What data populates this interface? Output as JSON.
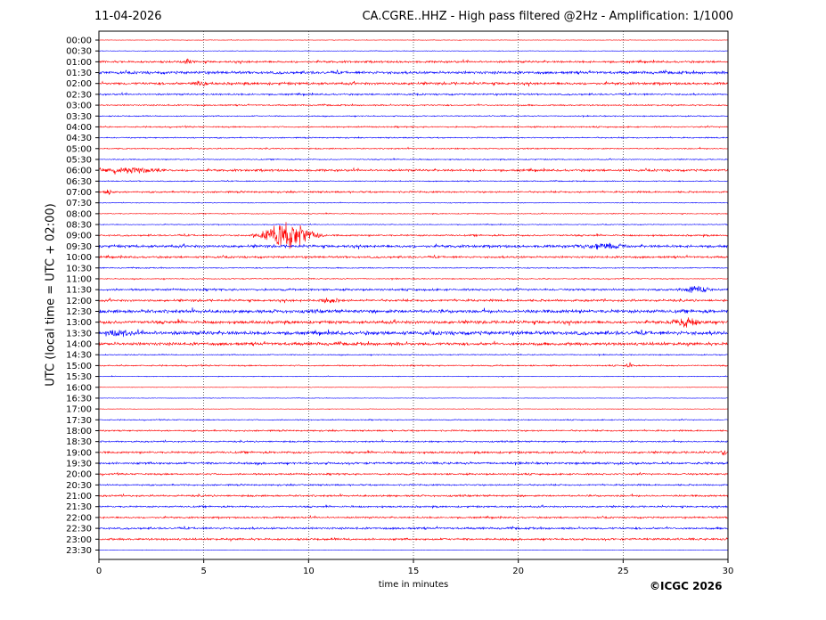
{
  "header": {
    "date": "11-04-2026",
    "title": "CA.CGRE..HHZ - High pass filtered @2Hz - Amplification: 1/1000"
  },
  "footer": {
    "copyright": "©ICGC 2026"
  },
  "chart_data": {
    "type": "line",
    "title": "CA.CGRE..HHZ - High pass filtered @2Hz - Amplification: 1/1000",
    "xlabel": "time in minutes",
    "ylabel": "UTC (local time = UTC + 02:00)",
    "xlim": [
      0,
      30
    ],
    "xticks": [
      0,
      5,
      10,
      15,
      20,
      25,
      30
    ],
    "grid": "vertical dotted at x ticks",
    "trace_colors": [
      "#ff0000",
      "#0000ff"
    ],
    "rows": [
      "00:00",
      "00:30",
      "01:00",
      "01:30",
      "02:00",
      "02:30",
      "03:00",
      "03:30",
      "04:00",
      "04:30",
      "05:00",
      "05:30",
      "06:00",
      "06:30",
      "07:00",
      "07:30",
      "08:00",
      "08:30",
      "09:00",
      "09:30",
      "10:00",
      "10:30",
      "11:00",
      "11:30",
      "12:00",
      "12:30",
      "13:00",
      "13:30",
      "14:00",
      "14:30",
      "15:00",
      "15:30",
      "16:00",
      "16:30",
      "17:00",
      "17:30",
      "18:00",
      "18:30",
      "19:00",
      "19:30",
      "20:00",
      "20:30",
      "21:00",
      "21:30",
      "22:00",
      "22:30",
      "23:00",
      "23:30"
    ],
    "noise_level": [
      0.3,
      0.3,
      1.2,
      1.6,
      1.5,
      1.0,
      0.8,
      0.6,
      0.8,
      0.7,
      0.7,
      0.6,
      1.3,
      0.6,
      1.0,
      0.4,
      0.5,
      0.5,
      1.0,
      1.6,
      1.2,
      0.6,
      0.6,
      1.2,
      1.3,
      2.0,
      1.8,
      2.2,
      1.8,
      0.6,
      0.8,
      0.4,
      0.3,
      0.3,
      0.3,
      0.6,
      0.9,
      0.9,
      1.2,
      1.3,
      1.0,
      0.9,
      1.1,
      1.0,
      1.0,
      1.2,
      1.2,
      0.2
    ],
    "events": [
      {
        "row": "01:00",
        "x": 4.2,
        "amp": 2.5,
        "dur": 0.8
      },
      {
        "row": "02:00",
        "x": 4.8,
        "amp": 2.5,
        "dur": 1.0
      },
      {
        "row": "06:00",
        "x": 1.5,
        "amp": 2.5,
        "dur": 4.0
      },
      {
        "row": "07:00",
        "x": 0.5,
        "amp": 3.0,
        "dur": 0.6
      },
      {
        "row": "09:00",
        "x": 9.0,
        "amp": 14,
        "dur": 3.5
      },
      {
        "row": "09:30",
        "x": 24.0,
        "amp": 2.5,
        "dur": 3.0
      },
      {
        "row": "11:30",
        "x": 28.5,
        "amp": 3.0,
        "dur": 2.0
      },
      {
        "row": "12:00",
        "x": 11.0,
        "amp": 2.5,
        "dur": 1.5
      },
      {
        "row": "13:00",
        "x": 28.0,
        "amp": 4.0,
        "dur": 2.0
      },
      {
        "row": "13:30",
        "x": 1.0,
        "amp": 3.0,
        "dur": 1.5
      },
      {
        "row": "15:00",
        "x": 25.3,
        "amp": 4.0,
        "dur": 0.4
      },
      {
        "row": "19:00",
        "x": 29.8,
        "amp": 3.0,
        "dur": 0.4
      }
    ]
  }
}
